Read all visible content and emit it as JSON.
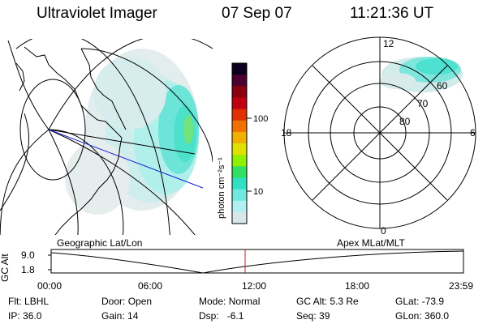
{
  "header": {
    "instrument": "Ultraviolet Imager",
    "date": "07 Sep 07",
    "time": "11:21:36 UT"
  },
  "colorbar": {
    "label": "photon cm⁻²s⁻¹",
    "ticks": [
      "100",
      "10"
    ],
    "colors": [
      "#0a0020",
      "#4a0030",
      "#8a0010",
      "#c00010",
      "#e03000",
      "#f07000",
      "#f0b000",
      "#e0e000",
      "#90f000",
      "#30e060",
      "#30e0c0",
      "#70e8e0",
      "#b0f0f0",
      "#d8e8e8"
    ]
  },
  "globe": {
    "label": "Geographic Lat/Lon"
  },
  "polar": {
    "label": "Apex  MLat/MLT",
    "mlt_labels": {
      "top": "12",
      "left": "18",
      "right": "6",
      "bottom": "0"
    },
    "lat_labels": [
      "60",
      "70",
      "80"
    ]
  },
  "timeline": {
    "axis_label": "GC Alt",
    "y_ticks": [
      "9.0",
      "1.8"
    ],
    "x_ticks": [
      "00:00",
      "06:00",
      "12:00",
      "18:00",
      "23:59"
    ]
  },
  "status": {
    "row1": [
      {
        "key": "Flt:",
        "value": "LBHL"
      },
      {
        "key": "Door:",
        "value": "Open"
      },
      {
        "key": "Mode:",
        "value": "Normal"
      },
      {
        "key": "GC Alt:",
        "value": "5.3 Re"
      },
      {
        "key": "GLat:",
        "value": "-73.9"
      }
    ],
    "row2": [
      {
        "key": "IP:",
        "value": "36.0"
      },
      {
        "key": "Gain:",
        "value": "14"
      },
      {
        "key": "Dsp:",
        "value": "  -6.1"
      },
      {
        "key": "Seq:",
        "value": "39"
      },
      {
        "key": "GLon:",
        "value": "360.0"
      }
    ]
  }
}
